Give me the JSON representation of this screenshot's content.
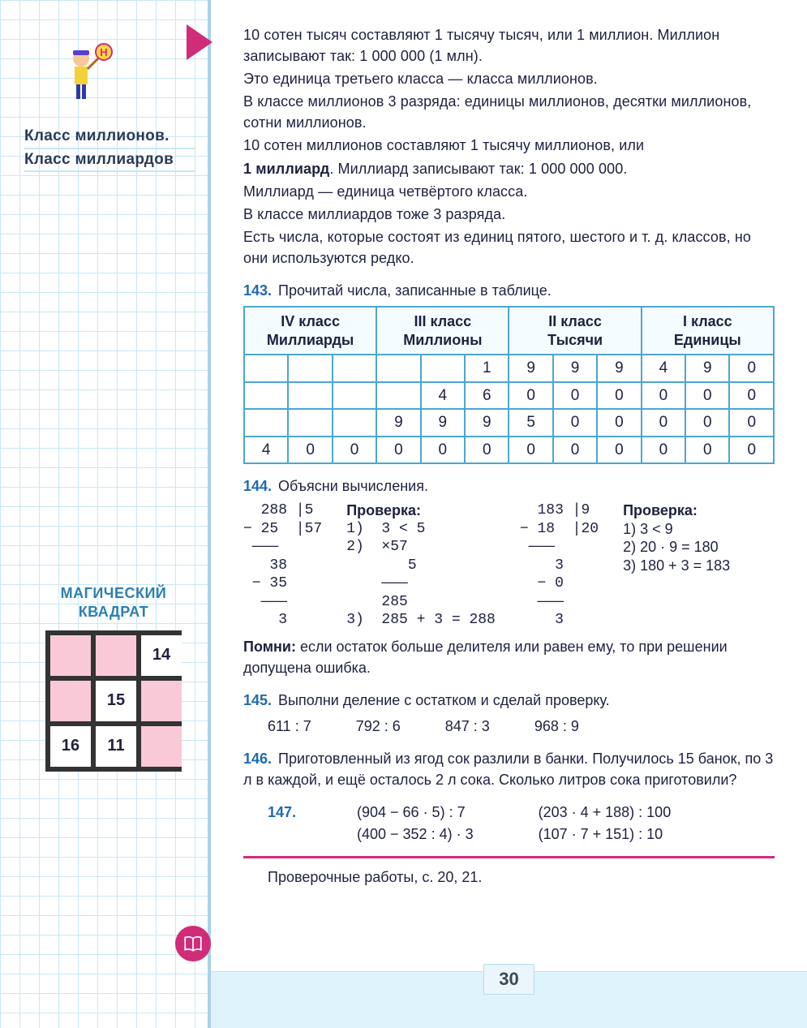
{
  "sidebar": {
    "title1": "Класс миллионов.",
    "title2": "Класс миллиардов",
    "magic": {
      "title": "МАГИЧЕСКИЙ\nКВАДРАТ",
      "cells": [
        {
          "v": "",
          "f": false
        },
        {
          "v": "",
          "f": false
        },
        {
          "v": "14",
          "f": true
        },
        {
          "v": "",
          "f": false
        },
        {
          "v": "15",
          "f": true
        },
        {
          "v": "",
          "f": false
        },
        {
          "v": "16",
          "f": true
        },
        {
          "v": "11",
          "f": true
        },
        {
          "v": "",
          "f": false
        }
      ]
    }
  },
  "intro": [
    "10 сотен тысяч составляют 1 тысячу тысяч, или 1 миллион. Миллион записывают так: 1 000 000 (1 млн).",
    "Это единица третьего класса — класса миллионов.",
    "В классе миллионов 3 разряда: единицы миллионов, десятки миллионов, сотни миллионов.",
    "10 сотен миллионов составляют 1 тысячу миллионов, или",
    "1 миллиард. Миллиард записывают так: 1 000 000 000.",
    "Миллиард — единица четвёртого класса.",
    "В классе миллиардов тоже 3 разряда.",
    "Есть числа, которые состоят из единиц пятого, шестого и т. д. классов, но они используются редко."
  ],
  "ex143": {
    "num": "143.",
    "title": "Прочитай числа, записанные в таблице.",
    "headers": [
      [
        "IV класс",
        "Миллиарды"
      ],
      [
        "III класс",
        "Миллионы"
      ],
      [
        "II класс",
        "Тысячи"
      ],
      [
        "I класс",
        "Единицы"
      ]
    ],
    "rows": [
      [
        "",
        "",
        "",
        "",
        "",
        "1",
        "9",
        "9",
        "9",
        "4",
        "9",
        "0"
      ],
      [
        "",
        "",
        "",
        "",
        "4",
        "6",
        "0",
        "0",
        "0",
        "0",
        "0",
        "0"
      ],
      [
        "",
        "",
        "",
        "9",
        "9",
        "9",
        "5",
        "0",
        "0",
        "0",
        "0",
        "0"
      ],
      [
        "4",
        "0",
        "0",
        "0",
        "0",
        "0",
        "0",
        "0",
        "0",
        "0",
        "0",
        "0"
      ]
    ]
  },
  "ex144": {
    "num": "144.",
    "title": "Объясни вычисления.",
    "left_calc": "  288 |5 \n− 25  |57\n ———\n   38\n − 35\n  ———\n    3",
    "left_check_title": "Проверка:",
    "left_check": [
      "1)  3 < 5",
      "2)  ×57",
      "       5",
      "    ———",
      "    285",
      "3)  285 + 3 = 288"
    ],
    "right_calc": "  183 |9 \n− 18  |20\n ———\n    3\n  − 0\n  ———\n    3",
    "right_check_title": "Проверка:",
    "right_check": [
      "1)  3 < 9",
      "2)  20 · 9 = 180",
      "3)  180 + 3 = 183"
    ],
    "note_label": "Помни:",
    "note_text": " если остаток больше делителя или равен ему, то при решении допущена ошибка."
  },
  "ex145": {
    "num": "145.",
    "title": "Выполни деление с остатком и сделай проверку.",
    "items": [
      "611 : 7",
      "792 : 6",
      "847 : 3",
      "968 : 9"
    ]
  },
  "ex146": {
    "num": "146.",
    "text": "Приготовленный из ягод сок разлили в банки. Получилось 15 банок, по 3 л в каждой, и ещё осталось 2 л сока. Сколько литров сока приготовили?"
  },
  "ex147": {
    "num": "147.",
    "left": [
      "(904 − 66 · 5) : 7",
      "(400 − 352 : 4) · 3"
    ],
    "right": [
      "(203 · 4 + 188) : 100",
      "(107 · 7 + 151) : 10"
    ]
  },
  "footer": "Проверочные работы, с. 20, 21.",
  "pagenum": "30"
}
